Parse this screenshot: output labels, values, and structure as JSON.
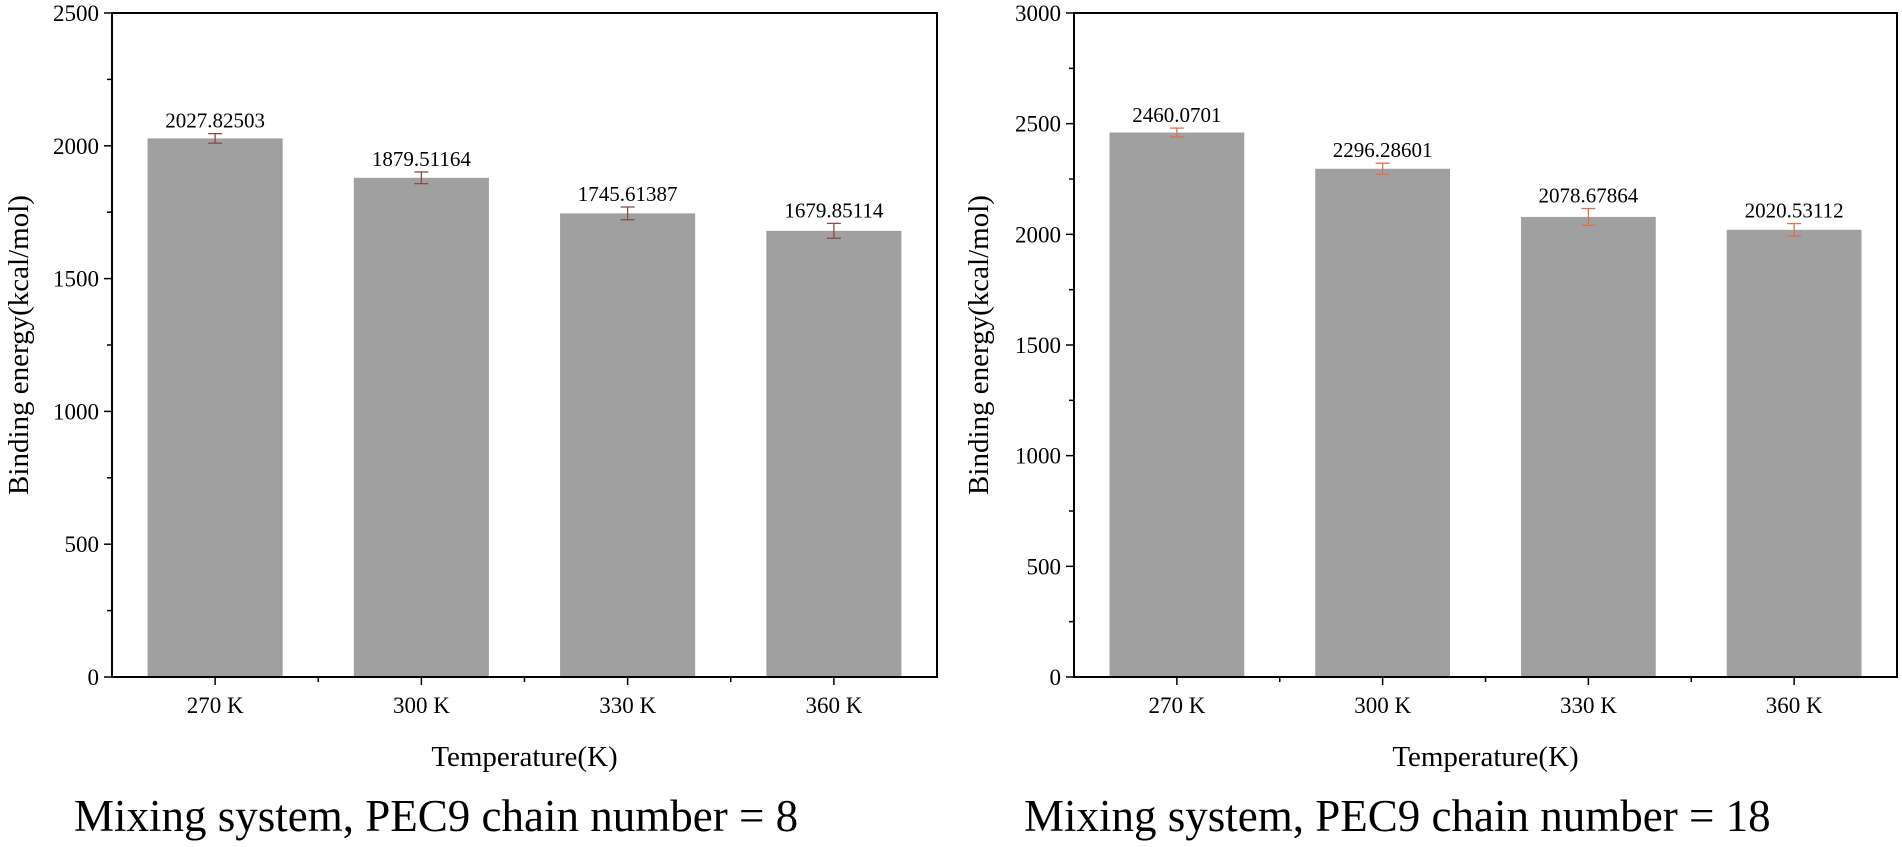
{
  "chart_data": [
    {
      "type": "bar",
      "categories": [
        "270 K",
        "300 K",
        "330 K",
        "360 K"
      ],
      "values": [
        2027.82503,
        1879.51164,
        1745.61387,
        1679.85114
      ],
      "value_labels": [
        "2027.82503",
        "1879.51164",
        "1745.61387",
        "1679.85114"
      ],
      "error": [
        18,
        22,
        24,
        28
      ],
      "xlabel": "Temperature(K)",
      "ylabel": "Binding energy(kcal/mol)",
      "ylim": [
        0,
        2500
      ],
      "yticks": [
        0,
        500,
        1000,
        1500,
        2000,
        2500
      ],
      "grid": false,
      "bar_color": "#a0a0a0",
      "error_color": "#8a4a4a",
      "caption": "Mixing system, PEC9 chain number = 8"
    },
    {
      "type": "bar",
      "categories": [
        "270 K",
        "300 K",
        "330 K",
        "360 K"
      ],
      "values": [
        2460.0701,
        2296.28601,
        2078.67864,
        2020.53112
      ],
      "value_labels": [
        "2460.0701",
        "2296.28601",
        "2078.67864",
        "2020.53112"
      ],
      "error": [
        20,
        25,
        38,
        28
      ],
      "xlabel": "Temperature(K)",
      "ylabel": "Binding energy(kcal/mol)",
      "ylim": [
        0,
        3000
      ],
      "yticks": [
        0,
        500,
        1000,
        1500,
        2000,
        2500,
        3000
      ],
      "grid": false,
      "bar_color": "#a0a0a0",
      "error_color": "#e07050",
      "caption": "Mixing system, PEC9 chain number = 18"
    }
  ]
}
